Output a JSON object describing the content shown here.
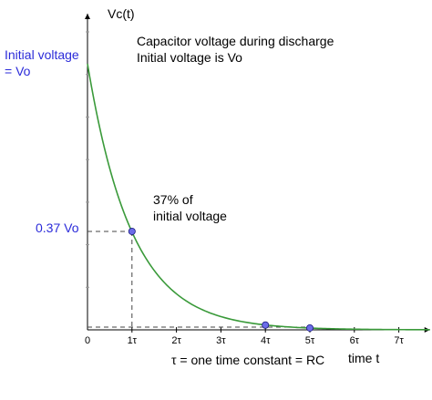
{
  "chart_data": {
    "type": "line",
    "title_lines": [
      "Capacitor voltage during discharge",
      "Initial voltage is Vo"
    ],
    "ylabel": "Vc(t)",
    "xlabel": "time t",
    "x_ticks": [
      "0",
      "1τ",
      "2τ",
      "3τ",
      "4τ",
      "5τ",
      "6τ",
      "7τ"
    ],
    "xlim": [
      0,
      7.7
    ],
    "ylim": [
      0,
      1.08
    ],
    "initial_voltage_label_lines": [
      "Initial voltage",
      "= Vo"
    ],
    "y_marker_label": "0.37 Vo",
    "annotation_lines": [
      "37% of",
      "initial voltage"
    ],
    "footnote": "τ = one time constant = RC",
    "curve": {
      "function": "exp(-t/τ)",
      "t_min": 0,
      "t_max": 7.7
    },
    "points": [
      {
        "x": 1,
        "y": 0.37
      },
      {
        "x": 4,
        "y": 0.018
      },
      {
        "x": 5,
        "y": 0.007
      }
    ],
    "curve_color": "#3a9a3a",
    "label_color": "#2b2bd9",
    "point_color": "#6c6ce8"
  }
}
